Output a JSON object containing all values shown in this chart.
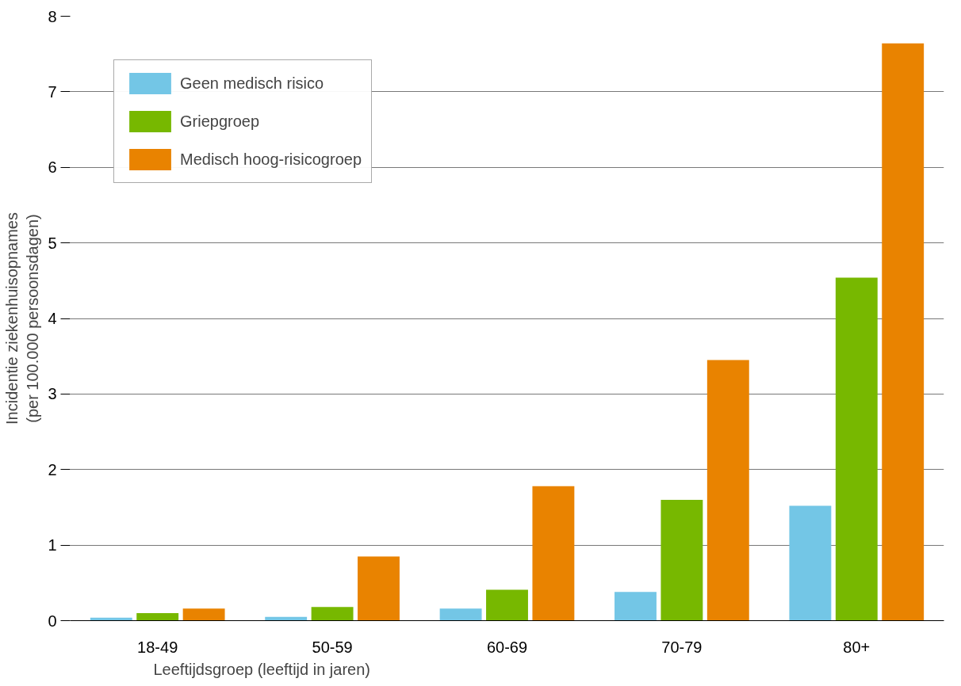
{
  "chart_data": {
    "type": "bar",
    "xlabel": "Leeftijdsgroep (leeftijd in jaren)",
    "ylabel": "Incidentie ziekenhuisopnames\n(per 100.000 persoonsdagen)",
    "categories": [
      "18-49",
      "50-59",
      "60-69",
      "70-79",
      "80+"
    ],
    "series": [
      {
        "name": "Geen medisch risico",
        "color": "#73c6e6",
        "values": [
          0.04,
          0.05,
          0.16,
          0.38,
          1.52
        ]
      },
      {
        "name": "Griepgroep",
        "color": "#77b800",
        "values": [
          0.1,
          0.18,
          0.41,
          1.6,
          4.54
        ]
      },
      {
        "name": "Medisch hoog-risicogroep",
        "color": "#e98300",
        "values": [
          0.16,
          0.85,
          1.78,
          3.45,
          7.64
        ]
      }
    ],
    "ylim": [
      0,
      8
    ],
    "yticks": [
      0,
      1,
      2,
      3,
      4,
      5,
      6,
      7,
      8
    ],
    "grid": "y",
    "legend": "top left"
  }
}
